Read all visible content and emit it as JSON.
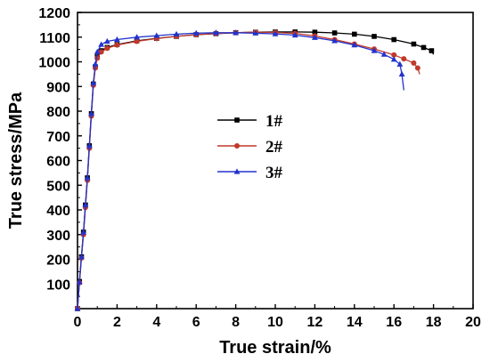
{
  "chart_data": {
    "type": "line",
    "title": "",
    "xlabel": "True strain/%",
    "ylabel": "True stress/MPa",
    "xlim": [
      0,
      20
    ],
    "ylim": [
      0,
      1200
    ],
    "xticks": [
      0,
      2,
      4,
      6,
      8,
      10,
      12,
      14,
      16,
      18,
      20
    ],
    "yticks": [
      100,
      200,
      300,
      400,
      500,
      600,
      700,
      800,
      900,
      1000,
      1100,
      1200
    ],
    "grid": false,
    "legend_position": "center-left",
    "series": [
      {
        "name": "1#",
        "color": "#000000",
        "marker": "square",
        "x": [
          0,
          0.1,
          0.2,
          0.3,
          0.4,
          0.5,
          0.6,
          0.7,
          0.8,
          0.9,
          1.0,
          1.2,
          1.5,
          2,
          3,
          4,
          5,
          6,
          7,
          8,
          9,
          10,
          11,
          12,
          13,
          14,
          15,
          16,
          17,
          17.5,
          17.9,
          18.0
        ],
        "y": [
          0,
          110,
          210,
          310,
          420,
          530,
          660,
          790,
          910,
          980,
          1020,
          1045,
          1058,
          1070,
          1085,
          1095,
          1103,
          1110,
          1114,
          1118,
          1120,
          1121,
          1121,
          1120,
          1117,
          1112,
          1103,
          1090,
          1072,
          1058,
          1045,
          1030
        ]
      },
      {
        "name": "2#",
        "color": "#c0392b",
        "marker": "circle",
        "x": [
          0,
          0.1,
          0.2,
          0.3,
          0.4,
          0.5,
          0.6,
          0.7,
          0.8,
          0.9,
          1.0,
          1.2,
          1.5,
          2,
          3,
          4,
          5,
          6,
          7,
          8,
          9,
          10,
          11,
          12,
          13,
          14,
          15,
          16,
          16.5,
          17.0,
          17.2,
          17.3
        ],
        "y": [
          0,
          105,
          205,
          300,
          410,
          520,
          650,
          780,
          905,
          975,
          1015,
          1040,
          1055,
          1068,
          1083,
          1094,
          1103,
          1110,
          1115,
          1118,
          1120,
          1119,
          1115,
          1105,
          1090,
          1072,
          1052,
          1028,
          1012,
          995,
          975,
          950
        ]
      },
      {
        "name": "3#",
        "color": "#2233cc",
        "marker": "triangle",
        "x": [
          0,
          0.1,
          0.2,
          0.3,
          0.4,
          0.5,
          0.6,
          0.7,
          0.8,
          0.9,
          1.0,
          1.2,
          1.5,
          2,
          3,
          4,
          5,
          6,
          7,
          8,
          9,
          10,
          11,
          12,
          13,
          14,
          15,
          15.5,
          16,
          16.3,
          16.4,
          16.5
        ],
        "y": [
          0,
          108,
          210,
          310,
          420,
          530,
          660,
          790,
          915,
          990,
          1040,
          1070,
          1083,
          1090,
          1100,
          1106,
          1112,
          1116,
          1118,
          1118,
          1116,
          1113,
          1108,
          1098,
          1085,
          1068,
          1045,
          1030,
          1010,
          990,
          950,
          885
        ]
      }
    ]
  }
}
